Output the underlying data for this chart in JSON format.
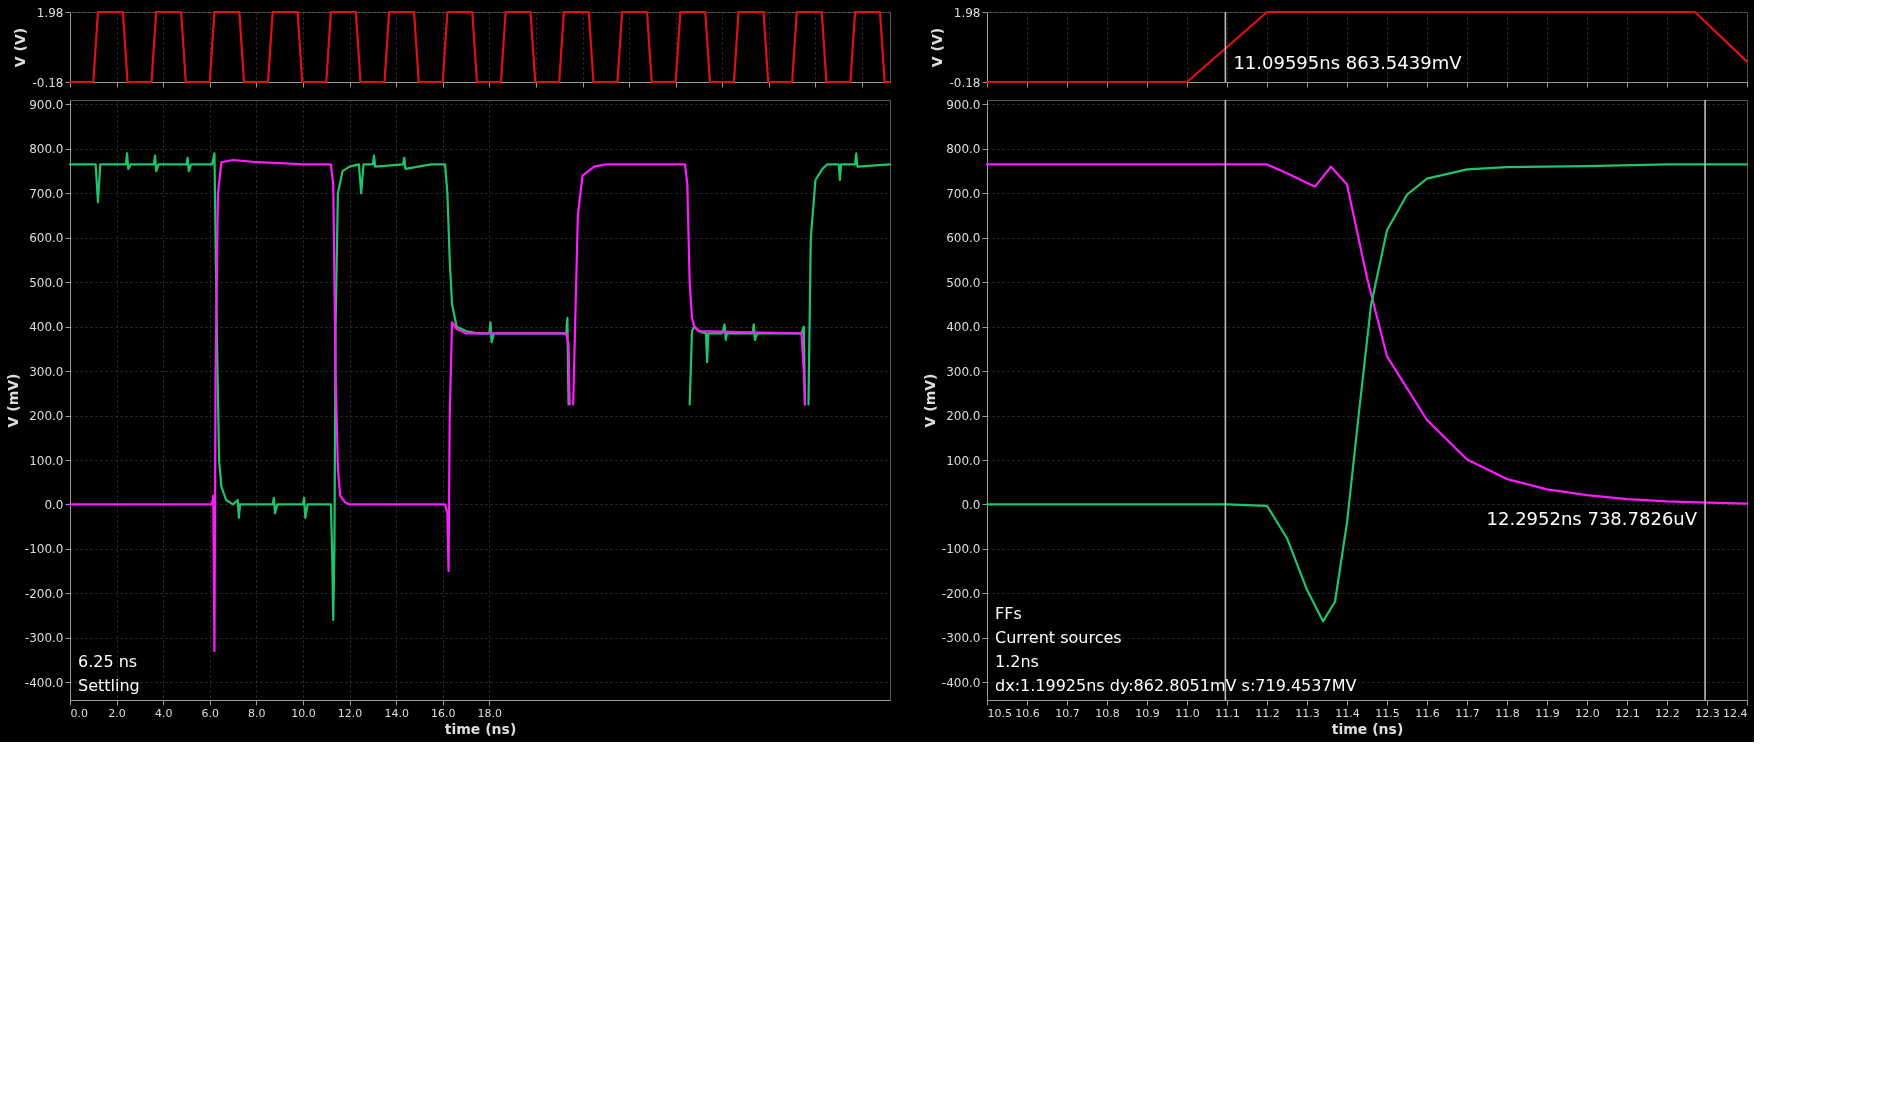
{
  "chart_data": [
    {
      "type": "line",
      "ylabel": "V (V)",
      "xlim": [
        0,
        35.2
      ],
      "ylim": [
        -0.18,
        1.98
      ],
      "yticks": [
        -0.18,
        1.98
      ],
      "tick_labels": "y",
      "grid": true,
      "series": [
        {
          "color": "#e01010",
          "x": [
            0,
            1.0,
            1.2,
            2.27,
            2.47,
            3.5,
            3.7,
            4.77,
            4.97,
            6.0,
            6.2,
            7.27,
            7.47,
            8.5,
            8.7,
            9.77,
            9.97,
            11.0,
            11.2,
            12.27,
            12.47,
            13.5,
            13.7,
            14.77,
            14.97,
            16.0,
            16.2,
            17.27,
            17.47,
            18.5,
            18.7,
            19.77,
            19.97,
            21.0,
            21.2,
            22.27,
            22.47,
            23.5,
            23.7,
            24.77,
            24.97,
            26.0,
            26.2,
            27.27,
            27.47,
            28.5,
            28.7,
            29.77,
            29.97,
            31.0,
            31.2,
            32.27,
            32.47,
            33.5,
            33.7,
            34.77,
            34.97,
            35.2
          ],
          "values": [
            -0.18,
            -0.18,
            1.98,
            1.98,
            -0.18,
            -0.18,
            1.98,
            1.98,
            -0.18,
            -0.18,
            1.98,
            1.98,
            -0.18,
            -0.18,
            1.98,
            1.98,
            -0.18,
            -0.18,
            1.98,
            1.98,
            -0.18,
            -0.18,
            1.98,
            1.98,
            -0.18,
            -0.18,
            1.98,
            1.98,
            -0.18,
            -0.18,
            1.98,
            1.98,
            -0.18,
            -0.18,
            1.98,
            1.98,
            -0.18,
            -0.18,
            1.98,
            1.98,
            -0.18,
            -0.18,
            1.98,
            1.98,
            -0.18,
            -0.18,
            1.98,
            1.98,
            -0.18,
            -0.18,
            1.98,
            1.98,
            -0.18,
            -0.18,
            1.98,
            1.98,
            -0.18,
            -0.18
          ]
        }
      ]
    },
    {
      "type": "line",
      "xlabel": "time (ns)",
      "ylabel": "V (mV)",
      "xlim": [
        0,
        35.2
      ],
      "ylim": [
        -440,
        910
      ],
      "grid": true,
      "xticks": [
        {
          "value": 0,
          "label": "0.0"
        },
        {
          "value": 2,
          "label": "2.0"
        },
        {
          "value": 4,
          "label": "4.0"
        },
        {
          "value": 6,
          "label": "6.0"
        },
        {
          "value": 8,
          "label": "8.0"
        },
        {
          "value": 10,
          "label": "10.0"
        },
        {
          "value": 12,
          "label": "12.0"
        },
        {
          "value": 14,
          "label": "14.0"
        },
        {
          "value": 16,
          "label": "16.0"
        },
        {
          "value": 18,
          "label": "18.0"
        }
      ],
      "yticks": [
        {
          "value": -400,
          "label": "-400.0"
        },
        {
          "value": -300,
          "label": "-300.0"
        },
        {
          "value": -200,
          "label": "-200.0"
        },
        {
          "value": -100,
          "label": "-100.0"
        },
        {
          "value": 0,
          "label": "0.0"
        },
        {
          "value": 100,
          "label": "100.0"
        },
        {
          "value": 200,
          "label": "200.0"
        },
        {
          "value": 300,
          "label": "300.0"
        },
        {
          "value": 400,
          "label": "400.0"
        },
        {
          "value": 500,
          "label": "500.0"
        },
        {
          "value": 600,
          "label": "600.0"
        },
        {
          "value": 700,
          "label": "700.0"
        },
        {
          "value": 800,
          "label": "800.0"
        },
        {
          "value": 900,
          "label": "900.0"
        }
      ],
      "annotations": [
        "6.25 ns",
        "Settling"
      ],
      "series": [
        {
          "color": "#1fc46a",
          "x": [
            0,
            1.1,
            1.2,
            1.3,
            2.4,
            2.45,
            2.5,
            2.6,
            3.6,
            3.65,
            3.7,
            3.8,
            5.0,
            5.05,
            5.1,
            5.2,
            6.1,
            6.2,
            6.3,
            6.4,
            6.5,
            6.7,
            7.0,
            7.2,
            7.25,
            7.3,
            8.7,
            8.75,
            8.8,
            8.9,
            10.0,
            10.05,
            10.1,
            10.2,
            11.2,
            11.25,
            11.3,
            11.35,
            11.4,
            11.5,
            11.7,
            12.0,
            12.4,
            12.5,
            12.6,
            13.0,
            13.05,
            13.1,
            14.3,
            14.35,
            14.4,
            15.5,
            16.1,
            16.2,
            16.3,
            16.4,
            16.6,
            17.0,
            17.5,
            18.0,
            18.05,
            18.1,
            18.2,
            21.3,
            21.35,
            21.4,
            21.5,
            26.6,
            26.7,
            26.8,
            27.0,
            27.3,
            27.35,
            27.4,
            28.0,
            28.1,
            28.15,
            28.2,
            29.3,
            29.35,
            29.4,
            29.5,
            31.4,
            31.5,
            31.55,
            31.6,
            31.7,
            31.8,
            32.0,
            32.3,
            32.5,
            33.0,
            33.05,
            33.1,
            33.7,
            33.75,
            33.8,
            35.2
          ],
          "values": [
            765,
            765,
            680,
            765,
            765,
            790,
            755,
            765,
            765,
            785,
            750,
            765,
            765,
            780,
            750,
            765,
            765,
            790,
            400,
            100,
            40,
            10,
            0,
            10,
            -30,
            0,
            0,
            15,
            -20,
            0,
            0,
            15,
            -30,
            0,
            0,
            -100,
            -260,
            -100,
            400,
            700,
            750,
            760,
            765,
            700,
            765,
            765,
            785,
            760,
            765,
            780,
            755,
            765,
            765,
            700,
            550,
            450,
            400,
            390,
            385,
            385,
            410,
            365,
            385,
            385,
            420,
            225,
            null,
            225,
            390,
            400,
            390,
            385,
            320,
            385,
            385,
            405,
            370,
            385,
            385,
            405,
            370,
            385,
            385,
            400,
            225,
            null,
            225,
            600,
            730,
            755,
            765,
            765,
            730,
            765,
            765,
            790,
            760,
            765
          ]
        },
        {
          "color": "#ff1aff",
          "x": [
            0,
            6.1,
            6.15,
            6.2,
            6.25,
            6.35,
            6.5,
            7.0,
            8.0,
            9.0,
            10.0,
            11.2,
            11.3,
            11.4,
            11.5,
            11.6,
            11.8,
            12.0,
            16.1,
            16.2,
            16.25,
            16.3,
            16.4,
            16.6,
            17.0,
            21.3,
            21.4,
            21.45,
            21.5,
            21.6,
            21.8,
            22.0,
            22.5,
            23.0,
            26.4,
            26.5,
            26.6,
            26.7,
            26.8,
            27.0,
            31.4,
            31.5,
            31.55
          ],
          "values": [
            0,
            0,
            20,
            -330,
            300,
            700,
            770,
            775,
            770,
            768,
            765,
            765,
            720,
            300,
            80,
            20,
            5,
            0,
            0,
            -20,
            -150,
            200,
            410,
            395,
            385,
            385,
            360,
            225,
            null,
            225,
            650,
            740,
            760,
            765,
            765,
            720,
            500,
            420,
            400,
            390,
            385,
            300,
            225
          ]
        }
      ]
    },
    {
      "type": "line",
      "ylabel": "V (V)",
      "xlim": [
        10.5,
        12.4
      ],
      "ylim": [
        -0.18,
        1.98
      ],
      "yticks": [
        -0.18,
        1.98
      ],
      "tick_labels": "y",
      "grid": true,
      "ref_lines": [
        {
          "axis": "x",
          "value": 11.09595,
          "color": "#bbbbbb"
        }
      ],
      "annotations": [
        {
          "text": "11.09595ns 863.5439mV",
          "x": 11.09595,
          "y": 0.8635
        }
      ],
      "series": [
        {
          "color": "#e01010",
          "x": [
            10.5,
            11.0,
            11.2,
            12.27,
            12.4
          ],
          "values": [
            -0.18,
            -0.18,
            1.98,
            1.98,
            0.45
          ]
        }
      ]
    },
    {
      "type": "line",
      "xlabel": "time (ns)",
      "ylabel": "V (mV)",
      "xlim": [
        10.5,
        12.4
      ],
      "ylim": [
        -440,
        910
      ],
      "grid": "y",
      "xticks": [
        {
          "value": 10.5,
          "label": "10.5"
        },
        {
          "value": 10.6,
          "label": "10.6"
        },
        {
          "value": 10.7,
          "label": "10.7"
        },
        {
          "value": 10.8,
          "label": "10.8"
        },
        {
          "value": 10.9,
          "label": "10.9"
        },
        {
          "value": 11.0,
          "label": "11.0"
        },
        {
          "value": 11.1,
          "label": "11.1"
        },
        {
          "value": 11.2,
          "label": "11.2"
        },
        {
          "value": 11.3,
          "label": "11.3"
        },
        {
          "value": 11.4,
          "label": "11.4"
        },
        {
          "value": 11.5,
          "label": "11.5"
        },
        {
          "value": 11.6,
          "label": "11.6"
        },
        {
          "value": 11.7,
          "label": "11.7"
        },
        {
          "value": 11.8,
          "label": "11.8"
        },
        {
          "value": 11.9,
          "label": "11.9"
        },
        {
          "value": 12.0,
          "label": "12.0"
        },
        {
          "value": 12.1,
          "label": "12.1"
        },
        {
          "value": 12.2,
          "label": "12.2"
        },
        {
          "value": 12.3,
          "label": "12.3"
        },
        {
          "value": 12.4,
          "label": "12.4"
        }
      ],
      "yticks": [
        {
          "value": -400,
          "label": "-400.0"
        },
        {
          "value": -300,
          "label": "-300.0"
        },
        {
          "value": -200,
          "label": "-200.0"
        },
        {
          "value": -100,
          "label": "-100.0"
        },
        {
          "value": 0,
          "label": "0.0"
        },
        {
          "value": 100,
          "label": "100.0"
        },
        {
          "value": 200,
          "label": "200.0"
        },
        {
          "value": 300,
          "label": "300.0"
        },
        {
          "value": 400,
          "label": "400.0"
        },
        {
          "value": 500,
          "label": "500.0"
        },
        {
          "value": 600,
          "label": "600.0"
        },
        {
          "value": 700,
          "label": "700.0"
        },
        {
          "value": 800,
          "label": "800.0"
        },
        {
          "value": 900,
          "label": "900.0"
        }
      ],
      "ref_lines": [
        {
          "axis": "x",
          "value": 11.09595,
          "color": "#bbbbbb"
        },
        {
          "axis": "x",
          "value": 12.2952,
          "color": "#bbbbbb"
        }
      ],
      "annotations": [
        "FFs",
        "Current sources",
        "1.2ns",
        {
          "text": "12.2952ns 738.7826uV",
          "x": 12.2952,
          "y": 0
        },
        "dx:1.19925ns dy:862.8051mV s:719.4537MV"
      ],
      "series": [
        {
          "color": "#ff1aff",
          "x": [
            10.5,
            11.1,
            11.2,
            11.25,
            11.32,
            11.36,
            11.4,
            11.45,
            11.5,
            11.6,
            11.7,
            11.8,
            11.9,
            12.0,
            12.1,
            12.2,
            12.3,
            12.4
          ],
          "values": [
            765,
            765,
            765,
            745,
            715,
            760,
            720,
            510,
            333,
            190,
            101,
            57,
            34,
            21,
            12,
            7,
            4,
            2
          ]
        },
        {
          "color": "#1fc46a",
          "x": [
            10.5,
            11.1,
            11.2,
            11.25,
            11.3,
            11.34,
            11.37,
            11.4,
            11.43,
            11.46,
            11.5,
            11.55,
            11.6,
            11.7,
            11.8,
            12.0,
            12.2,
            12.4
          ],
          "values": [
            0,
            0,
            -3,
            -76,
            -192,
            -263,
            -219,
            -41,
            208,
            448,
            617,
            697,
            733,
            754,
            759,
            761,
            765,
            765
          ]
        }
      ]
    }
  ]
}
